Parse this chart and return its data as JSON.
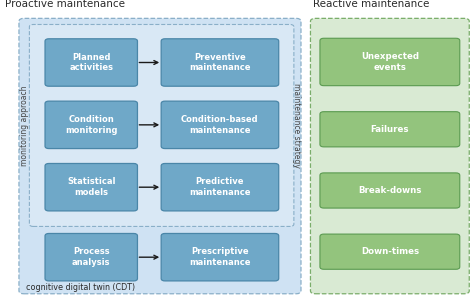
{
  "title_left": "Proactive maintenance",
  "title_right": "Reactive maintenance",
  "col1_labels": [
    "Planned\nactivities",
    "Condition\nmonitoring",
    "Statistical\nmodels",
    "Process\nanalysis"
  ],
  "col2_labels": [
    "Preventive\nmaintenance",
    "Condition-based\nmaintenance",
    "Predictive\nmaintenance",
    "Prescriptive\nmaintenance"
  ],
  "right_labels": [
    "Unexpected\nevents",
    "Failures",
    "Break-downs",
    "Down-times"
  ],
  "label_monitoring": "monitoring approach",
  "label_strategy": "maintenance strategy",
  "label_cdt": "cognitive digital twin (CDT)",
  "box_blue": "#6fa8c8",
  "box_green": "#93c47d",
  "bg_blue_outer": "#cfe2f3",
  "bg_blue_inner": "#d9e8f5",
  "bg_green": "#d9ead3",
  "edge_blue": "#8aafc8",
  "edge_green": "#7aad6a",
  "text_dark": "#2a2a2a",
  "text_white": "#ffffff",
  "arrow_color": "#1a1a1a",
  "figsize": [
    4.74,
    3.06
  ],
  "dpi": 100
}
